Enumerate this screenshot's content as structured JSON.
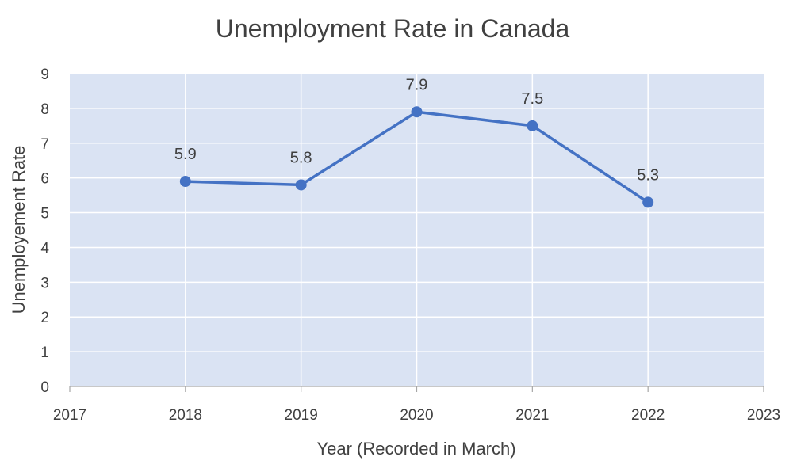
{
  "chart_data": {
    "type": "line",
    "title": "Unemployment Rate in Canada",
    "xlabel": "Year (Recorded in March)",
    "ylabel": "Unemployement Rate",
    "x_ticks": [
      "2017",
      "2018",
      "2019",
      "2020",
      "2021",
      "2022",
      "2023"
    ],
    "y_ticks": [
      "0",
      "1",
      "2",
      "3",
      "4",
      "5",
      "6",
      "7",
      "8",
      "9"
    ],
    "xlim": [
      2017,
      2023
    ],
    "ylim": [
      0,
      9
    ],
    "grid": true,
    "series": [
      {
        "x": [
          2018,
          2019,
          2020,
          2021,
          2022
        ],
        "values": [
          5.9,
          5.8,
          7.9,
          7.5,
          5.3
        ],
        "data_labels": [
          "5.9",
          "5.8",
          "7.9",
          "7.5",
          "5.3"
        ],
        "color": "#4472c4"
      }
    ],
    "colors": {
      "plot_background": "#dae3f3",
      "gridline": "#ffffff",
      "axis": "#a6a6a6",
      "line": "#4472c4"
    }
  }
}
